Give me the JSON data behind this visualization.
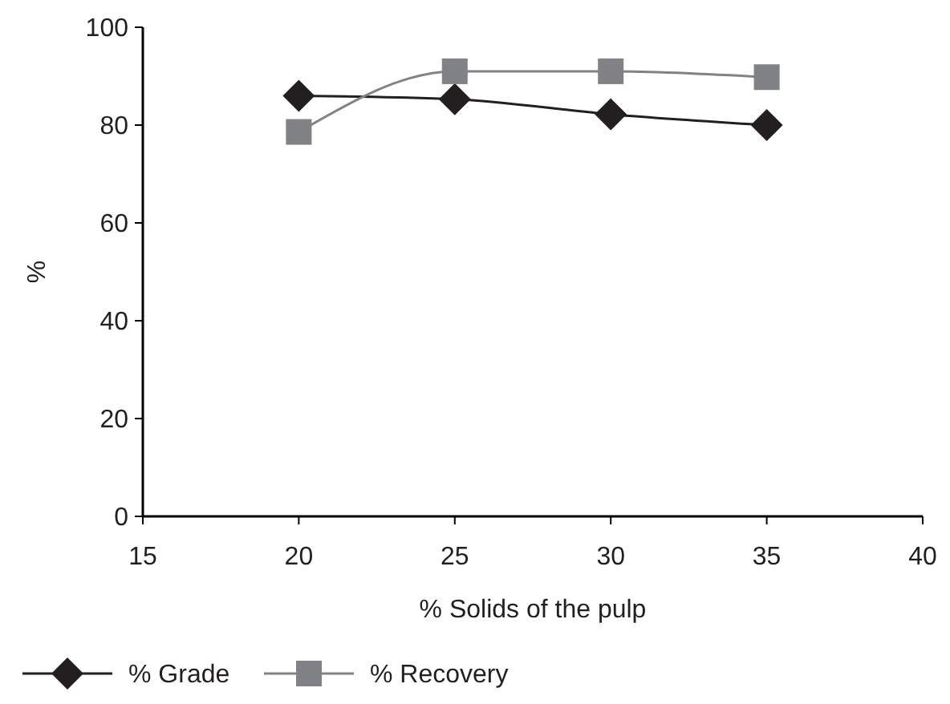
{
  "chart_data": {
    "type": "line",
    "xlabel": "% Solids of the pulp",
    "ylabel": "%",
    "x": [
      20,
      25,
      30,
      35
    ],
    "series": [
      {
        "name": "% Grade",
        "color": "#231f20",
        "values": [
          86,
          85.3,
          82.2,
          80
        ],
        "marker": "diamond"
      },
      {
        "name": "% Recovery",
        "color": "#808285",
        "values": [
          78.6,
          91,
          91,
          89.8
        ],
        "marker": "square"
      }
    ],
    "xlim": [
      15,
      40
    ],
    "xticks": [
      15,
      20,
      25,
      30,
      35,
      40
    ],
    "ylim": [
      0,
      100
    ],
    "yticks": [
      0,
      20,
      40,
      60,
      80,
      100
    ],
    "grid": false,
    "legend": "bottom left",
    "line_style": "solid"
  }
}
